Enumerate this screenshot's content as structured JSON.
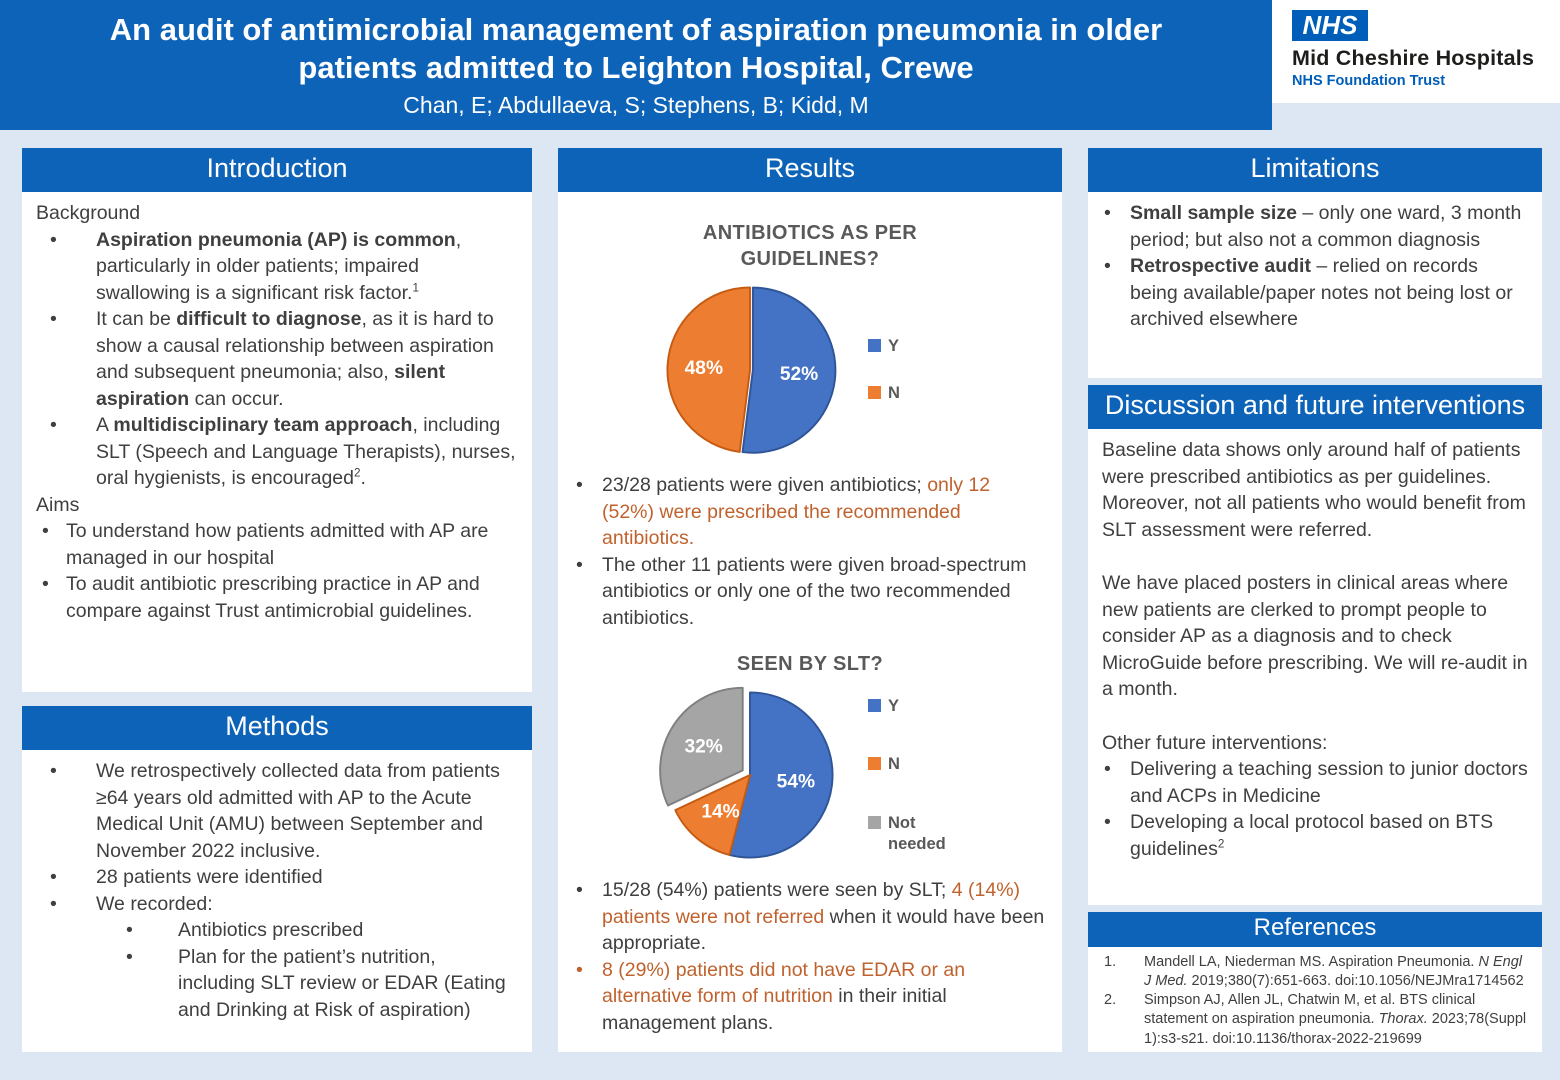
{
  "header": {
    "title_line1": "An audit of antimicrobial management of aspiration pneumonia in older",
    "title_line2": "patients admitted to Leighton Hospital, Crewe",
    "authors": "Chan, E; Abdullaeva, S; Stephens, B; Kidd, M",
    "logo": {
      "nhs": "NHS",
      "org": "Mid Cheshire Hospitals",
      "sub": "NHS Foundation Trust"
    }
  },
  "colors": {
    "banner_blue": "#0d63b8",
    "nhs_blue": "#005EB8",
    "page_background": "#dce7f3",
    "body_text": "#3f3f3f",
    "highlight_orange": "#c0622d",
    "chart_text_gray": "#595959"
  },
  "sections": {
    "introduction": {
      "title": "Introduction",
      "background_label": "Background",
      "background_bullets": [
        [
          {
            "t": "Aspiration pneumonia (AP) is common",
            "b": 1
          },
          {
            "t": ", particularly in older patients; impaired swallowing is a significant risk factor."
          },
          {
            "t": "1",
            "sup": 1
          }
        ],
        [
          {
            "t": "It can be "
          },
          {
            "t": "difficult to diagnose",
            "b": 1
          },
          {
            "t": ", as it is hard to show a causal relationship between aspiration and subsequent pneumonia; also, "
          },
          {
            "t": "silent aspiration",
            "b": 1
          },
          {
            "t": " can occur."
          }
        ],
        [
          {
            "t": "A "
          },
          {
            "t": "multidisciplinary team approach",
            "b": 1
          },
          {
            "t": ", including SLT (Speech and Language Therapists), nurses, oral hygienists, is encouraged"
          },
          {
            "t": "2",
            "sup": 1
          },
          {
            "t": "."
          }
        ]
      ],
      "aims_label": "Aims",
      "aims": [
        [
          {
            "t": "To understand how patients admitted with AP are managed in our hospital"
          }
        ],
        [
          {
            "t": "To audit antibiotic prescribing practice in AP and compare against Trust antimicrobial guidelines."
          }
        ]
      ]
    },
    "methods": {
      "title": "Methods",
      "bullets": [
        "We retrospectively collected data from patients ≥64 years old admitted with AP to the Acute Medical Unit (AMU) between September and November 2022 inclusive.",
        "28 patients were identified",
        "We recorded:"
      ],
      "sub_bullets": [
        "Antibiotics prescribed",
        "Plan for the patient’s nutrition, including SLT review or EDAR (Eating and Drinking at Risk of aspiration)"
      ]
    },
    "results": {
      "title": "Results",
      "bullets1": [
        [
          {
            "t": "23/28 patients were given antibiotics; "
          },
          {
            "t": "only 12 (52%) were prescribed the recommended antibiotics.",
            "o": 1
          }
        ],
        [
          {
            "t": "The other 11 patients were given broad-spectrum antibiotics or only one of the two recommended antibiotics."
          }
        ]
      ],
      "bullets2": [
        [
          {
            "t": "15/28 (54%) patients were seen by SLT; "
          },
          {
            "t": "4 (14%) patients were not referred",
            "o": 1
          },
          {
            "t": " when it would have been appropriate."
          }
        ],
        [
          {
            "t": "8 (29%) patients did not have EDAR or an alternative form of nutrition",
            "o": 1
          },
          {
            "t": " in their initial management plans."
          }
        ]
      ]
    },
    "limitations": {
      "title": "Limitations",
      "bullets": [
        [
          {
            "t": "Small sample size",
            "b": 1
          },
          {
            "t": " – only one ward, 3 month period; but also not a common diagnosis"
          }
        ],
        [
          {
            "t": "Retrospective audit",
            "b": 1
          },
          {
            "t": " – relied on records being available/paper notes not being lost or archived elsewhere"
          }
        ]
      ]
    },
    "discussion": {
      "title": "Discussion and future interventions",
      "para1": "Baseline data shows only around half of patients were prescribed antibiotics as per guidelines. Moreover, not all patients who would benefit from SLT assessment were referred.",
      "para2": "We have placed posters in clinical areas where new patients are clerked to prompt people to consider AP as a diagnosis and to check MicroGuide before prescribing. We will re-audit in a month.",
      "other_label": "Other future interventions:",
      "bullets": [
        [
          {
            "t": "Delivering a teaching session to junior doctors and ACPs in Medicine"
          }
        ],
        [
          {
            "t": "Developing a local protocol based on BTS guidelines"
          },
          {
            "t": "2",
            "sup": 1
          }
        ]
      ]
    },
    "references": {
      "title": "References",
      "items": [
        [
          {
            "t": "Mandell LA, Niederman MS. Aspiration Pneumonia. "
          },
          {
            "t": "N Engl J Med.",
            "i": 1
          },
          {
            "t": " 2019;380(7):651-663. doi:10.1056/NEJMra1714562"
          }
        ],
        [
          {
            "t": "Simpson AJ, Allen JL, Chatwin M, et al. BTS clinical statement on aspiration pneumonia. "
          },
          {
            "t": "Thorax.",
            "i": 1
          },
          {
            "t": " 2023;78(Suppl 1):s3-s21. doi:10.1136/thorax-2022-219699"
          }
        ]
      ]
    }
  },
  "chart_data": [
    {
      "type": "pie",
      "title": "ANTIBIOTICS AS PER GUIDELINES?",
      "labels": [
        "Y",
        "N"
      ],
      "values": [
        52,
        48
      ],
      "data_labels": [
        "52%",
        "48%"
      ],
      "colors": [
        "#4472C4",
        "#ED7D31"
      ],
      "stroke_colors": [
        "#2F5597",
        "#C55A11"
      ],
      "offsets": [
        3,
        0
      ],
      "legend_position": "right",
      "start_angle_deg": 0,
      "direction": "clockwise"
    },
    {
      "type": "pie",
      "title": "SEEN BY SLT?",
      "labels": [
        "Y",
        "N",
        "Not needed"
      ],
      "values": [
        54,
        14,
        32
      ],
      "data_labels": [
        "54%",
        "14%",
        "32%"
      ],
      "colors": [
        "#4472C4",
        "#ED7D31",
        "#A5A5A5"
      ],
      "stroke_colors": [
        "#2F5597",
        "#C55A11",
        "#7F7F7F"
      ],
      "offsets": [
        0,
        0,
        9
      ],
      "legend_position": "right",
      "start_angle_deg": 0,
      "direction": "clockwise"
    }
  ]
}
